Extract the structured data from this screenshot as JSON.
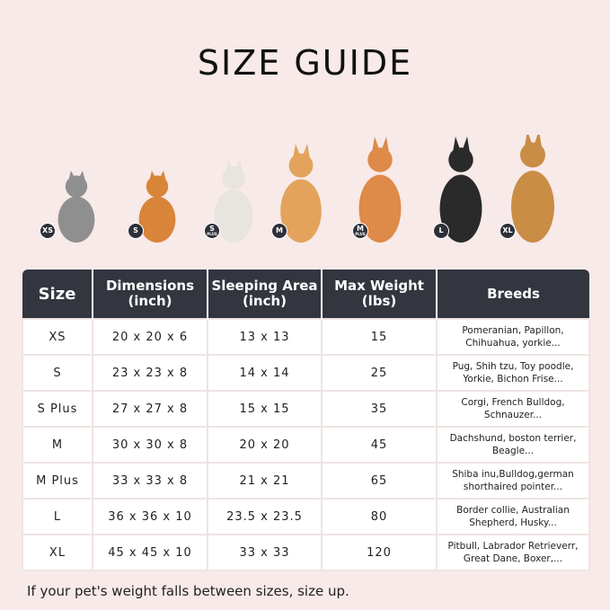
{
  "title": "SIZE GUIDE",
  "pets": [
    {
      "badge": "XS",
      "sub": "",
      "color": "#8f8f8f",
      "h": 80
    },
    {
      "badge": "S",
      "sub": "",
      "color": "#d8853a",
      "h": 80
    },
    {
      "badge": "S",
      "sub": "PLUS",
      "color": "#e8e4e0",
      "h": 92
    },
    {
      "badge": "M",
      "sub": "",
      "color": "#e3a35c",
      "h": 110
    },
    {
      "badge": "M",
      "sub": "PLUS",
      "color": "#de8a48",
      "h": 118
    },
    {
      "badge": "L",
      "sub": "",
      "color": "#2a2a2a",
      "h": 118
    },
    {
      "badge": "XL",
      "sub": "",
      "color": "#c98d45",
      "h": 125
    }
  ],
  "table": {
    "headers": [
      "Size",
      "Dimensions (inch)",
      "Sleeping Area (inch)",
      "Max Weight (lbs)",
      "Breeds"
    ],
    "rows": [
      [
        "XS",
        "20 x 20 x 6",
        "13 x 13",
        "15",
        "Pomeranian, Papillon, Chihuahua, yorkie..."
      ],
      [
        "S",
        "23 x 23 x 8",
        "14 x 14",
        "25",
        "Pug, Shih tzu, Toy poodle, Yorkie, Bichon Frise..."
      ],
      [
        "S Plus",
        "27 x 27 x 8",
        "15 x 15",
        "35",
        "Corgi, French Bulldog, Schnauzer..."
      ],
      [
        "M",
        "30 x 30 x 8",
        "20 x 20",
        "45",
        "Dachshund, boston terrier, Beagle..."
      ],
      [
        "M Plus",
        "33 x 33 x 8",
        "21 x 21",
        "65",
        "Shiba inu,Bulldog,german shorthaired pointer..."
      ],
      [
        "L",
        "36 x 36 x 10",
        "23.5 x 23.5",
        "80",
        "Border collie, Australian Shepherd, Husky..."
      ],
      [
        "XL",
        "45 x 45 x 10",
        "33 x 33",
        "120",
        "Pitbull, Labrador Retrieverr, Great Dane, Boxer,..."
      ]
    ]
  },
  "note": "If your pet's weight falls between sizes, size up."
}
